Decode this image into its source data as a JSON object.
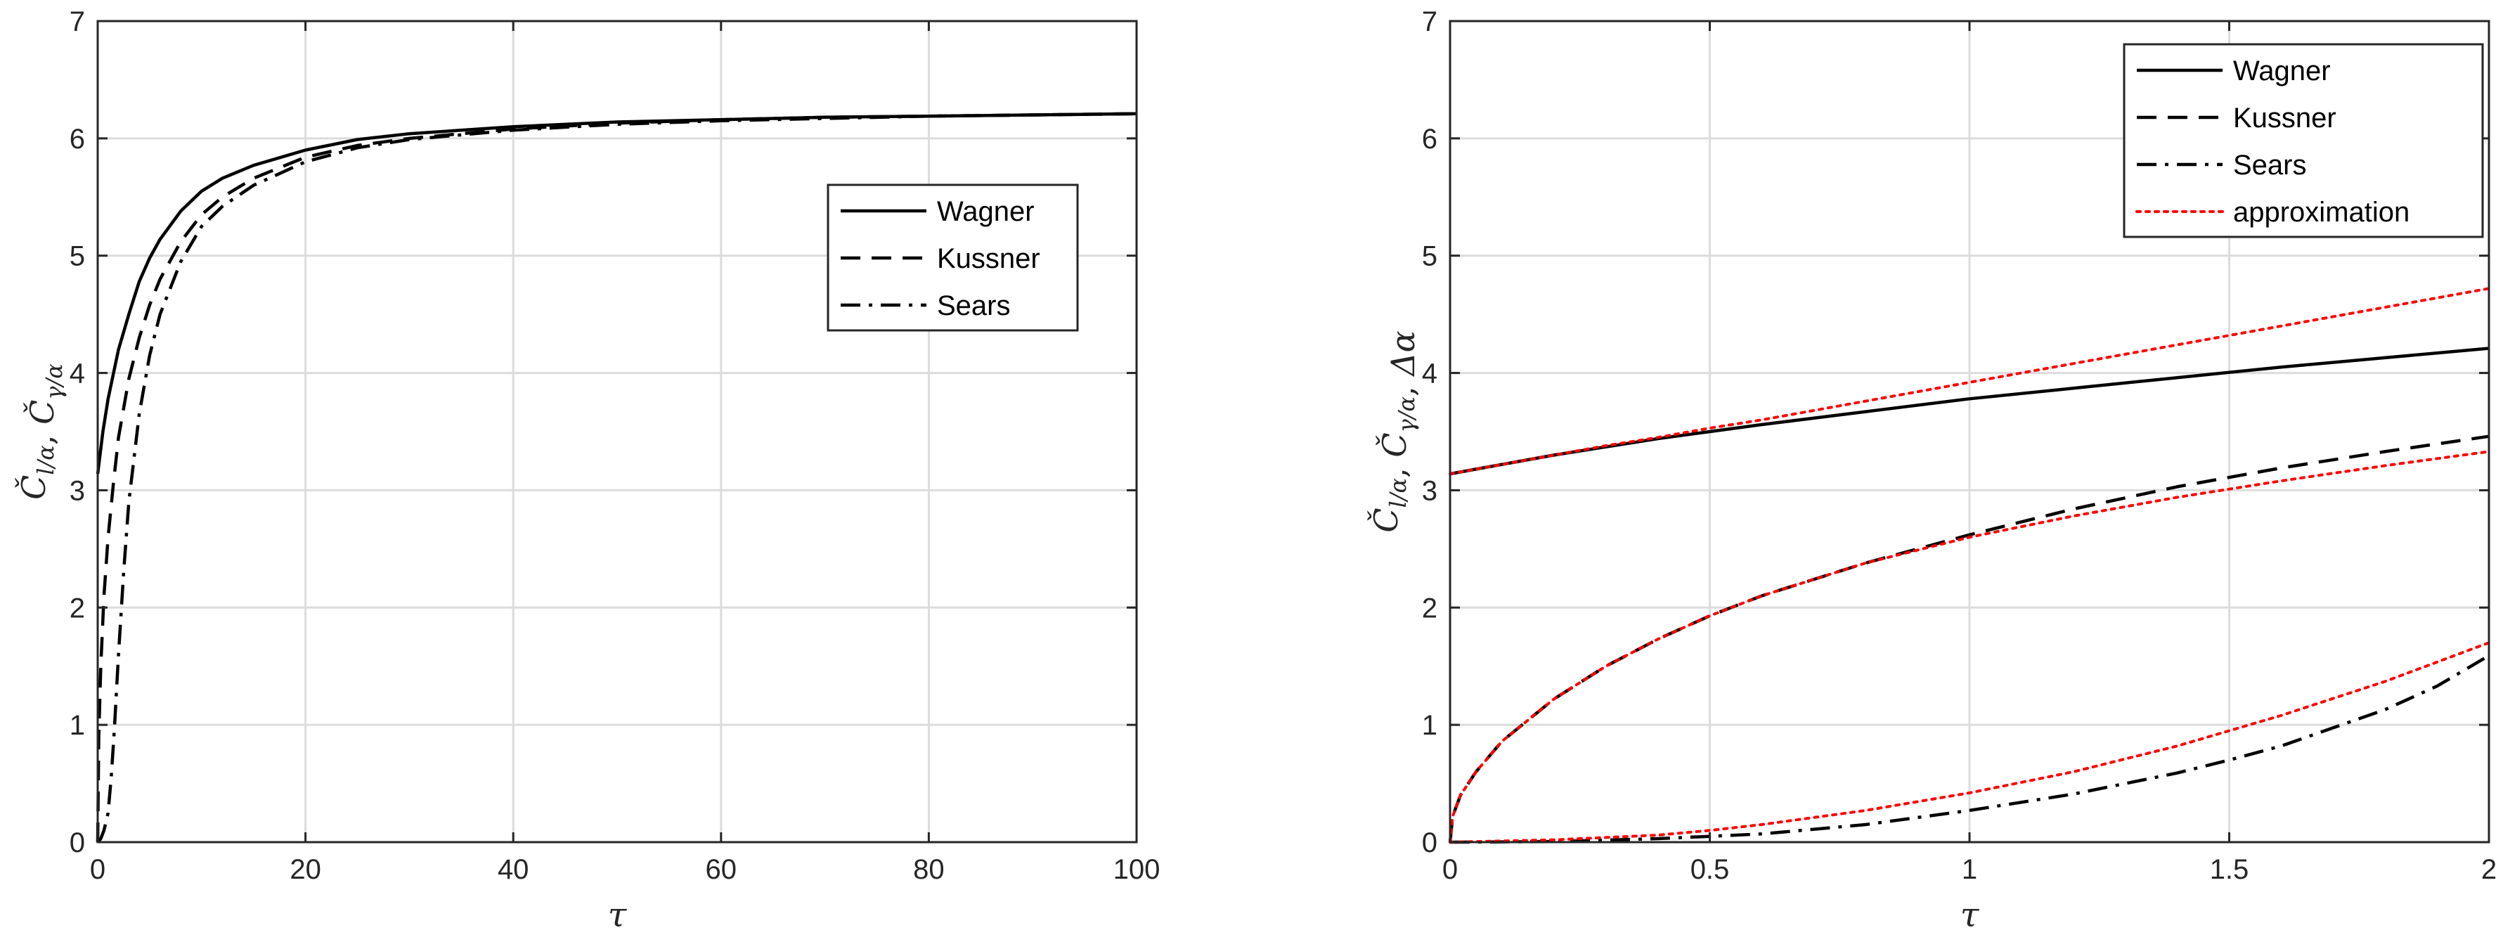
{
  "chart_data": [
    {
      "type": "line",
      "xlabel": "τ",
      "ylabel": "Č_{l/α}, Č_{γ/α}",
      "xlim": [
        0,
        100
      ],
      "ylim": [
        0,
        7
      ],
      "xticks": [
        "0",
        "20",
        "40",
        "60",
        "80",
        "100"
      ],
      "yticks": [
        "0",
        "1",
        "2",
        "3",
        "4",
        "5",
        "6",
        "7"
      ],
      "grid": true,
      "legend_position": "right, mid-upper",
      "series": [
        {
          "name": "Wagner",
          "style": "solid",
          "color": "#000000",
          "x": [
            0,
            0.5,
            1,
            2,
            3,
            4,
            5,
            6,
            8,
            10,
            12,
            15,
            20,
            25,
            30,
            40,
            50,
            60,
            70,
            80,
            90,
            100
          ],
          "y": [
            3.14,
            3.5,
            3.78,
            4.2,
            4.5,
            4.78,
            4.98,
            5.14,
            5.38,
            5.55,
            5.66,
            5.77,
            5.9,
            5.99,
            6.04,
            6.1,
            6.14,
            6.16,
            6.18,
            6.19,
            6.2,
            6.21
          ]
        },
        {
          "name": "Kussner",
          "style": "dashed",
          "color": "#000000",
          "x": [
            0,
            0.1,
            0.3,
            0.6,
            1,
            1.5,
            2,
            3,
            4,
            5,
            6,
            8,
            10,
            12,
            15,
            20,
            25,
            30,
            40,
            50,
            60,
            70,
            80,
            90,
            100
          ],
          "y": [
            0,
            0.9,
            1.5,
            2.1,
            2.6,
            3.05,
            3.45,
            3.95,
            4.3,
            4.58,
            4.8,
            5.12,
            5.35,
            5.5,
            5.66,
            5.84,
            5.94,
            6.0,
            6.08,
            6.13,
            6.16,
            6.18,
            6.19,
            6.2,
            6.21
          ]
        },
        {
          "name": "Sears",
          "style": "dashdot",
          "color": "#000000",
          "x": [
            0,
            0.3,
            0.6,
            1,
            1.3,
            1.6,
            2,
            2.5,
            3,
            4,
            5,
            6,
            8,
            10,
            12,
            15,
            20,
            25,
            30,
            40,
            50,
            60,
            70,
            80,
            90,
            100
          ],
          "y": [
            0,
            0.03,
            0.1,
            0.25,
            0.55,
            0.95,
            1.6,
            2.3,
            2.9,
            3.65,
            4.15,
            4.5,
            4.95,
            5.25,
            5.42,
            5.6,
            5.8,
            5.92,
            5.99,
            6.07,
            6.12,
            6.15,
            6.17,
            6.19,
            6.2,
            6.21
          ]
        }
      ]
    },
    {
      "type": "line",
      "xlabel": "τ",
      "ylabel": "Č_{l/α}, Č_{γ/α}, Δα",
      "xlim": [
        0,
        2
      ],
      "ylim": [
        0,
        7
      ],
      "xticks": [
        "0",
        "0.5",
        "1",
        "1.5",
        "2"
      ],
      "yticks": [
        "0",
        "1",
        "2",
        "3",
        "4",
        "5",
        "6",
        "7"
      ],
      "grid": true,
      "legend_position": "top-right",
      "series": [
        {
          "name": "Wagner",
          "style": "solid",
          "color": "#000000",
          "x": [
            0,
            0.05,
            0.1,
            0.2,
            0.3,
            0.4,
            0.5,
            0.6,
            0.8,
            1.0,
            1.2,
            1.4,
            1.6,
            1.8,
            2.0
          ],
          "y": [
            3.14,
            3.18,
            3.22,
            3.3,
            3.37,
            3.44,
            3.5,
            3.56,
            3.67,
            3.78,
            3.87,
            3.96,
            4.05,
            4.13,
            4.21
          ]
        },
        {
          "name": "Kussner",
          "style": "dashed",
          "color": "#000000",
          "x": [
            0,
            0.005,
            0.02,
            0.05,
            0.1,
            0.2,
            0.3,
            0.4,
            0.5,
            0.6,
            0.8,
            1.0,
            1.2,
            1.4,
            1.6,
            1.8,
            2.0
          ],
          "y": [
            0,
            0.22,
            0.4,
            0.6,
            0.86,
            1.22,
            1.5,
            1.73,
            1.93,
            2.1,
            2.38,
            2.62,
            2.84,
            3.03,
            3.19,
            3.33,
            3.46
          ]
        },
        {
          "name": "Sears",
          "style": "dashdot",
          "color": "#000000",
          "x": [
            0,
            0.2,
            0.4,
            0.5,
            0.6,
            0.8,
            1.0,
            1.2,
            1.4,
            1.5,
            1.6,
            1.8,
            1.9,
            2.0
          ],
          "y": [
            0,
            0.005,
            0.03,
            0.05,
            0.07,
            0.15,
            0.27,
            0.41,
            0.59,
            0.7,
            0.82,
            1.13,
            1.33,
            1.59
          ]
        },
        {
          "name": "approximation",
          "style": "dotted",
          "color": "#ff0000",
          "segments": [
            {
              "x": [
                0,
                0.1,
                0.2,
                0.3,
                0.4,
                0.5,
                0.6,
                0.8,
                1.0,
                1.2,
                1.4,
                1.6,
                1.8,
                2.0
              ],
              "y": [
                3.14,
                3.22,
                3.3,
                3.38,
                3.45,
                3.53,
                3.6,
                3.76,
                3.92,
                4.08,
                4.24,
                4.4,
                4.56,
                4.72
              ]
            },
            {
              "x": [
                0,
                0.005,
                0.02,
                0.05,
                0.1,
                0.2,
                0.3,
                0.4,
                0.5,
                0.6,
                0.8,
                1.0,
                1.2,
                1.4,
                1.6,
                1.8,
                2.0
              ],
              "y": [
                0,
                0.22,
                0.4,
                0.6,
                0.86,
                1.22,
                1.5,
                1.73,
                1.93,
                2.1,
                2.38,
                2.6,
                2.78,
                2.94,
                3.08,
                3.21,
                3.33
              ]
            },
            {
              "x": [
                0,
                0.2,
                0.4,
                0.5,
                0.6,
                0.8,
                1.0,
                1.2,
                1.4,
                1.5,
                1.6,
                1.8,
                2.0
              ],
              "y": [
                0,
                0.02,
                0.06,
                0.1,
                0.15,
                0.27,
                0.42,
                0.6,
                0.82,
                0.95,
                1.08,
                1.37,
                1.7
              ]
            }
          ]
        }
      ]
    }
  ]
}
